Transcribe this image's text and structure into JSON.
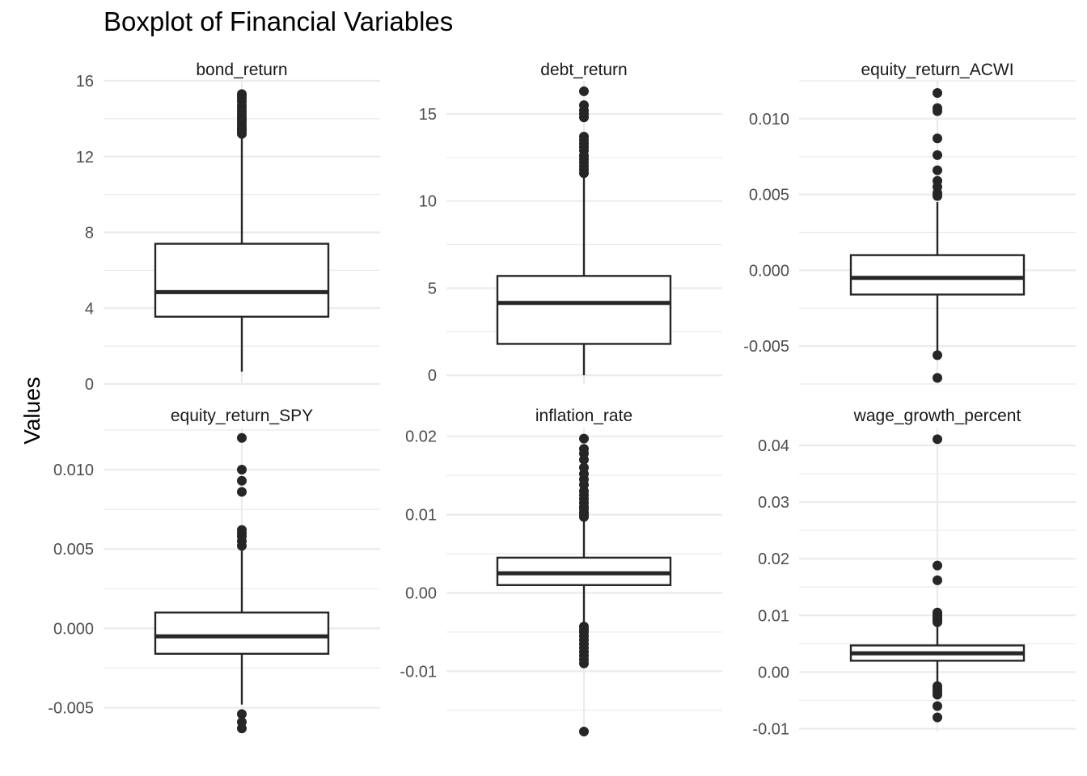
{
  "chart_data": {
    "type": "boxplot",
    "title": "Boxplot of Financial Variables",
    "xlabel": "",
    "ylabel": "Values",
    "grid": true,
    "box_color": "#262626",
    "point_color": "#262626",
    "grid_major_color": "#ebebeb",
    "panels": [
      {
        "name": "bond_return",
        "ylim": [
          0,
          16
        ],
        "ticks": [
          {
            "v": 0,
            "l": "0"
          },
          {
            "v": 4,
            "l": "4"
          },
          {
            "v": 8,
            "l": "8"
          },
          {
            "v": 12,
            "l": "12"
          },
          {
            "v": 16,
            "l": "16"
          }
        ],
        "minor": [
          2,
          6,
          10,
          14
        ],
        "whisker_low": 0.65,
        "q1": 3.55,
        "median": 4.85,
        "q3": 7.4,
        "whisker_high": 13.15,
        "outliers": [
          13.2,
          13.3,
          13.4,
          13.5,
          13.6,
          13.75,
          13.9,
          14.0,
          14.1,
          14.25,
          14.4,
          14.55,
          14.7,
          14.9,
          15.05,
          15.2,
          15.3
        ]
      },
      {
        "name": "debt_return",
        "ylim": [
          -0.5,
          16.9
        ],
        "ticks": [
          {
            "v": 0,
            "l": "0"
          },
          {
            "v": 5,
            "l": "5"
          },
          {
            "v": 10,
            "l": "10"
          },
          {
            "v": 15,
            "l": "15"
          }
        ],
        "minor": [
          2.5,
          7.5,
          12.5
        ],
        "whisker_low": 0.0,
        "q1": 1.8,
        "median": 4.15,
        "q3": 5.7,
        "whisker_high": 11.5,
        "outliers": [
          11.6,
          11.8,
          12.0,
          12.2,
          12.4,
          12.6,
          12.9,
          13.1,
          13.3,
          13.5,
          13.7,
          14.8,
          15.0,
          15.2,
          15.5,
          16.3
        ]
      },
      {
        "name": "equity_return_ACWI",
        "ylim": [
          -0.0075,
          0.0125
        ],
        "ticks": [
          {
            "v": -0.005,
            "l": "-0.005"
          },
          {
            "v": 0.0,
            "l": "0.000"
          },
          {
            "v": 0.005,
            "l": "0.005"
          },
          {
            "v": 0.01,
            "l": "0.010"
          }
        ],
        "minor": [
          -0.0075,
          -0.0025,
          0.0025,
          0.0075,
          0.0125
        ],
        "whisker_low": -0.0053,
        "q1": -0.0016,
        "median": -0.0005,
        "q3": 0.001,
        "whisker_high": 0.0045,
        "outliers": [
          -0.0071,
          -0.0056,
          0.0049,
          0.0051,
          0.0055,
          0.0059,
          0.0066,
          0.0076,
          0.0087,
          0.0105,
          0.0107,
          0.0117
        ]
      },
      {
        "name": "equity_return_SPY",
        "ylim": [
          -0.0065,
          0.0126
        ],
        "ticks": [
          {
            "v": -0.005,
            "l": "-0.005"
          },
          {
            "v": 0.0,
            "l": "0.000"
          },
          {
            "v": 0.005,
            "l": "0.005"
          },
          {
            "v": 0.01,
            "l": "0.010"
          }
        ],
        "minor": [
          -0.0025,
          0.0025,
          0.0075,
          0.0125
        ],
        "whisker_low": -0.0048,
        "q1": -0.0016,
        "median": -0.0005,
        "q3": 0.001,
        "whisker_high": 0.0049,
        "outliers": [
          -0.0063,
          -0.0059,
          -0.0054,
          0.0052,
          0.0055,
          0.0058,
          0.006,
          0.0062,
          0.0086,
          0.0093,
          0.01,
          0.012
        ]
      },
      {
        "name": "inflation_rate",
        "ylim": [
          -0.0177,
          0.021
        ],
        "ticks": [
          {
            "v": -0.01,
            "l": "-0.01"
          },
          {
            "v": 0.0,
            "l": "0.00"
          },
          {
            "v": 0.01,
            "l": "0.01"
          },
          {
            "v": 0.02,
            "l": "0.02"
          }
        ],
        "minor": [
          -0.015,
          -0.005,
          0.005,
          0.015
        ],
        "whisker_low": -0.0042,
        "q1": 0.001,
        "median": 0.0025,
        "q3": 0.0045,
        "whisker_high": 0.0095,
        "outliers": [
          -0.0177,
          -0.009,
          -0.0085,
          -0.008,
          -0.0075,
          -0.007,
          -0.0065,
          -0.006,
          -0.0055,
          -0.005,
          -0.0047,
          -0.0043,
          0.0097,
          0.01,
          0.0103,
          0.0107,
          0.011,
          0.0115,
          0.012,
          0.0125,
          0.013,
          0.0138,
          0.0145,
          0.0152,
          0.016,
          0.017,
          0.0178,
          0.0184,
          0.0197
        ]
      },
      {
        "name": "wage_growth_percent",
        "ylim": [
          -0.0105,
          0.043
        ],
        "ticks": [
          {
            "v": -0.01,
            "l": "-0.01"
          },
          {
            "v": 0.0,
            "l": "0.00"
          },
          {
            "v": 0.01,
            "l": "0.01"
          },
          {
            "v": 0.02,
            "l": "0.02"
          },
          {
            "v": 0.03,
            "l": "0.03"
          },
          {
            "v": 0.04,
            "l": "0.04"
          }
        ],
        "minor": [
          -0.005,
          0.005,
          0.015,
          0.025,
          0.035
        ],
        "whisker_low": -0.002,
        "q1": 0.002,
        "median": 0.0033,
        "q3": 0.0047,
        "whisker_high": 0.0087,
        "outliers": [
          -0.008,
          -0.006,
          -0.004,
          -0.0035,
          -0.003,
          -0.0025,
          0.0088,
          0.009,
          0.0093,
          0.0096,
          0.0099,
          0.0102,
          0.0105,
          0.0162,
          0.0188,
          0.0411
        ]
      }
    ]
  }
}
